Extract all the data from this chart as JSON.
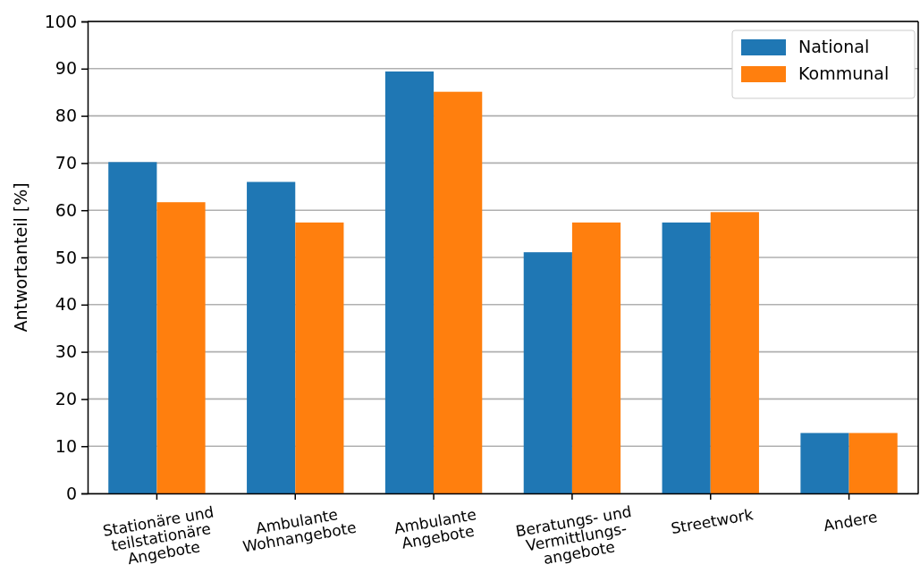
{
  "chart_data": {
    "type": "bar",
    "ylabel": "Antwortanteil [%]",
    "categories": [
      "Stationäre und\nteilstationäre\nAngebote",
      "Ambulante\nWohnangebote",
      "Ambulante\nAngebote",
      "Beratungs- und\nVermittlungs-\nangebote",
      "Streetwork",
      "Andere"
    ],
    "series": [
      {
        "name": "National",
        "color": "#1f77b4",
        "values": [
          70.2,
          66.0,
          89.4,
          51.1,
          57.4,
          12.8
        ]
      },
      {
        "name": "Kommunal",
        "color": "#ff7f0e",
        "values": [
          61.7,
          57.4,
          85.1,
          57.4,
          59.6,
          12.8
        ]
      }
    ],
    "ylim": [
      0,
      100
    ],
    "yticks": [
      0,
      10,
      20,
      30,
      40,
      50,
      60,
      70,
      80,
      90,
      100
    ],
    "grid": "y",
    "legend": "top right"
  }
}
